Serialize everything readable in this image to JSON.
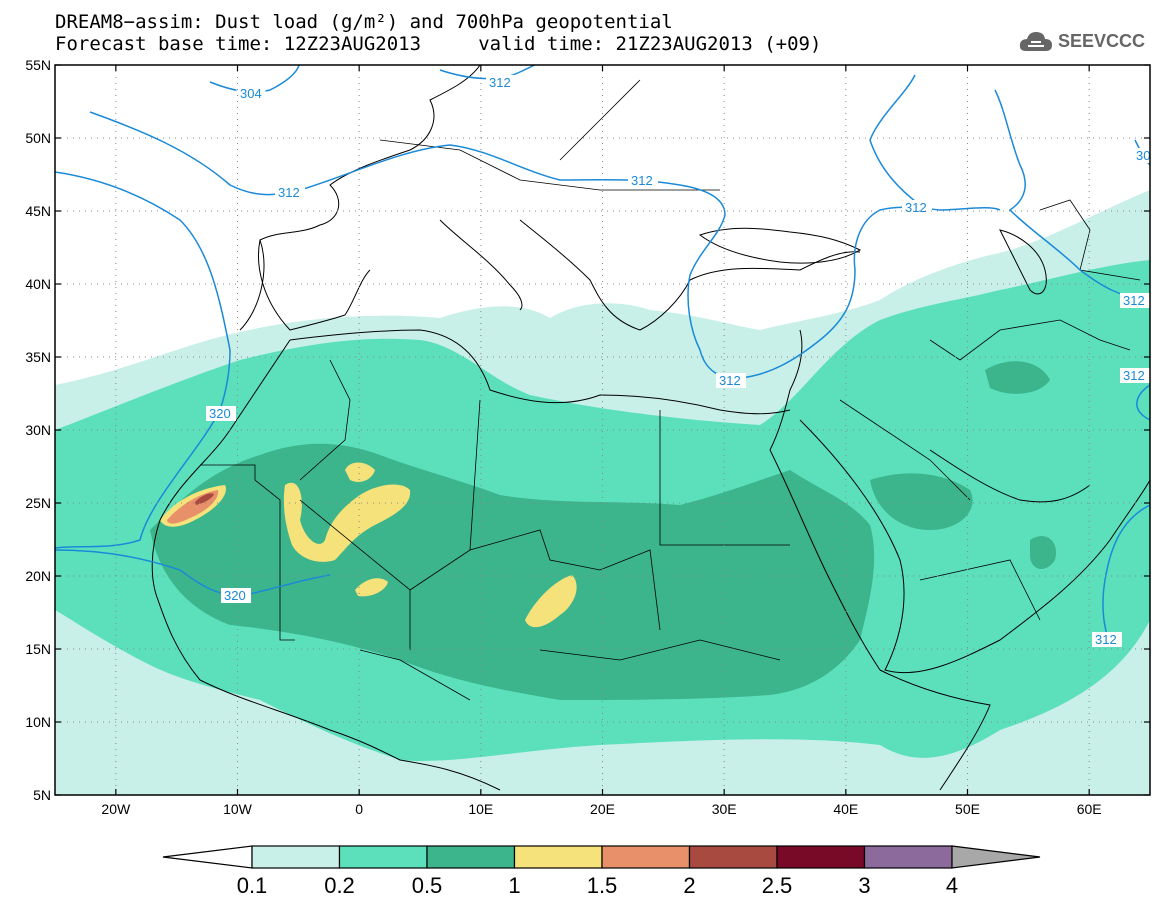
{
  "title_line1": "DREAM8−assim: Dust load (g/m²) and 700hPa geopotential",
  "title_line2": "Forecast base time: 12Z23AUG2013     valid time: 21Z23AUG2013 (+09)",
  "logo_text": "SEEVCCC",
  "lat_labels": [
    "55N",
    "50N",
    "45N",
    "40N",
    "35N",
    "30N",
    "25N",
    "20N",
    "15N",
    "10N",
    "5N"
  ],
  "lon_labels": [
    "20W",
    "10W",
    "0",
    "10E",
    "20E",
    "30E",
    "40E",
    "50E",
    "60E"
  ],
  "contour_labels": [
    "304",
    "312",
    "312",
    "312",
    "312",
    "312",
    "312",
    "312",
    "320",
    "320",
    "30"
  ],
  "colorbar": {
    "labels": [
      "0.1",
      "0.2",
      "0.5",
      "1",
      "1.5",
      "2",
      "2.5",
      "3",
      "4"
    ],
    "colors": [
      "#c8f0e8",
      "#5ce0bc",
      "#3cb48c",
      "#f5e27a",
      "#e8906a",
      "#a84a40",
      "#780a28",
      "#8c6a9c"
    ],
    "under_color": "#ffffff",
    "over_color": "#a8a8a8"
  },
  "colors": {
    "very_light": "#c8f0e8",
    "light": "#5ce0bc",
    "medium": "#3cb48c",
    "yellow": "#f5e27a",
    "orange": "#e8906a",
    "brown": "#a84a40",
    "contour": "#1a8ad8"
  },
  "icons": {
    "logo": "cloud-logo-icon"
  }
}
